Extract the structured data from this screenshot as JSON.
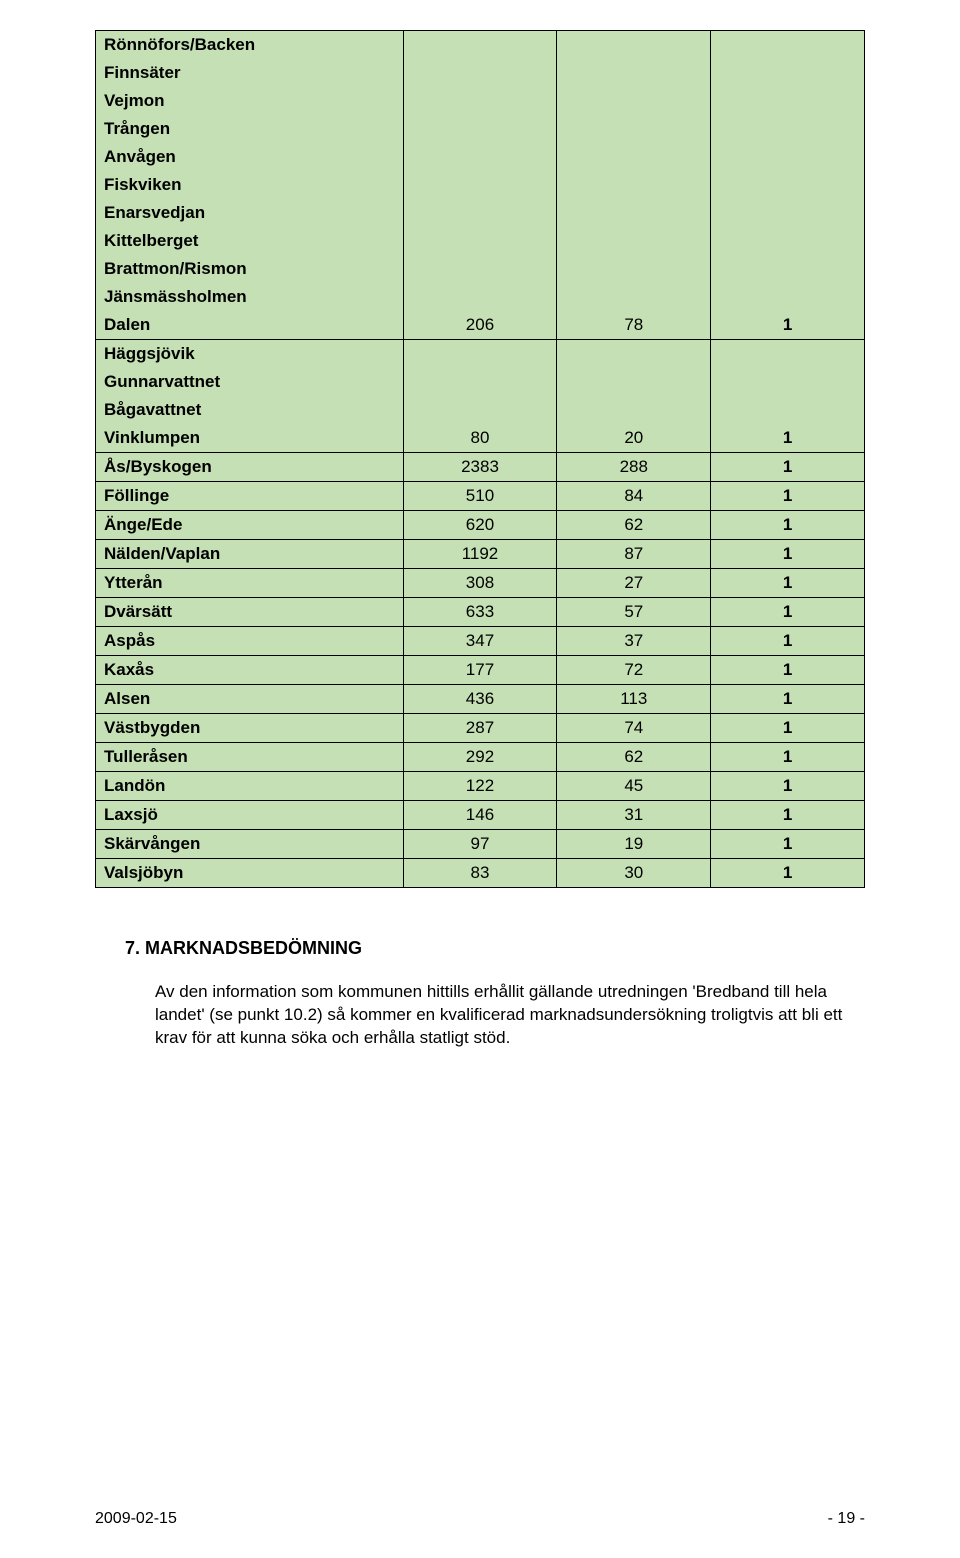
{
  "table": {
    "background_color": "#c4e0b4",
    "border_color": "#000000",
    "font_size": 17,
    "groups": [
      {
        "names": [
          "Rönnöfors/Backen",
          "Finnsäter",
          "Vejmon",
          "Trången",
          "Anvågen",
          "Fiskviken",
          "Enarsvedjan",
          "Kittelberget",
          "Brattmon/Rismon",
          "Jänsmässholmen",
          "Dalen"
        ],
        "a": "206",
        "b": "78",
        "c": "1"
      },
      {
        "names": [
          "Häggsjövik",
          "Gunnarvattnet",
          "Bågavattnet",
          "Vinklumpen"
        ],
        "a": "80",
        "b": "20",
        "c": "1"
      },
      {
        "names": [
          "Ås/Byskogen"
        ],
        "a": "2383",
        "b": "288",
        "c": "1"
      },
      {
        "names": [
          "Föllinge"
        ],
        "a": "510",
        "b": "84",
        "c": "1"
      },
      {
        "names": [
          "Änge/Ede"
        ],
        "a": "620",
        "b": "62",
        "c": "1"
      },
      {
        "names": [
          "Nälden/Vaplan"
        ],
        "a": "1192",
        "b": "87",
        "c": "1"
      },
      {
        "names": [
          "Ytterån"
        ],
        "a": "308",
        "b": "27",
        "c": "1"
      },
      {
        "names": [
          "Dvärsätt"
        ],
        "a": "633",
        "b": "57",
        "c": "1"
      },
      {
        "names": [
          "Aspås"
        ],
        "a": "347",
        "b": "37",
        "c": "1"
      },
      {
        "names": [
          "Kaxås"
        ],
        "a": "177",
        "b": "72",
        "c": "1"
      },
      {
        "names": [
          "Alsen"
        ],
        "a": "436",
        "b": "113",
        "c": "1"
      },
      {
        "names": [
          "Västbygden"
        ],
        "a": "287",
        "b": "74",
        "c": "1"
      },
      {
        "names": [
          "Tulleråsen"
        ],
        "a": "292",
        "b": "62",
        "c": "1"
      },
      {
        "names": [
          "Landön"
        ],
        "a": "122",
        "b": "45",
        "c": "1"
      },
      {
        "names": [
          "Laxsjö"
        ],
        "a": "146",
        "b": "31",
        "c": "1"
      },
      {
        "names": [
          "Skärvången"
        ],
        "a": "97",
        "b": "19",
        "c": "1"
      },
      {
        "names": [
          "Valsjöbyn"
        ],
        "a": "83",
        "b": "30",
        "c": "1"
      }
    ]
  },
  "section_heading": "7. MARKNADSBEDÖMNING",
  "body_text": "Av den information som kommunen hittills erhållit gällande utredningen 'Bredband till hela landet' (se punkt 10.2) så kommer en kvalificerad marknadsundersökning troligtvis att bli ett krav för att kunna söka och erhålla statligt stöd.",
  "footer": {
    "left": "2009-02-15",
    "right": "- 19 -"
  }
}
